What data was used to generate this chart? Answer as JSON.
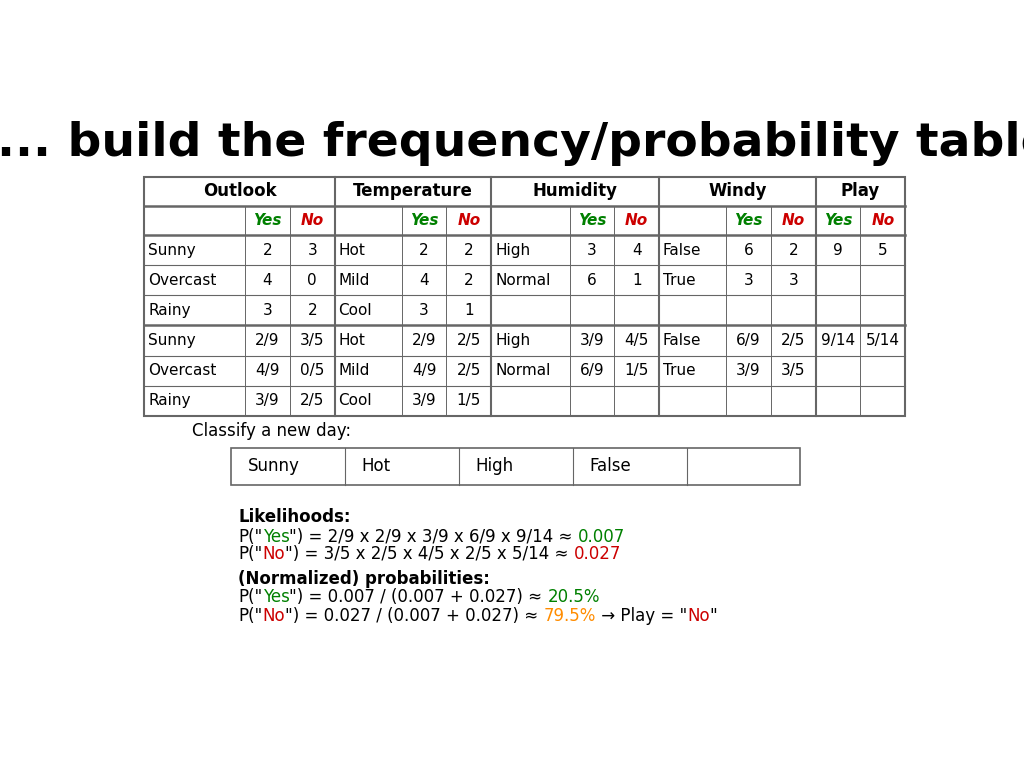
{
  "title": "... build the frequency/probability table",
  "bg_color": "#ffffff",
  "title_fontsize": 34,
  "main_table": {
    "data_rows_freq": [
      [
        "Sunny",
        "2",
        "3",
        "Hot",
        "2",
        "2",
        "High",
        "3",
        "4",
        "False",
        "6",
        "2",
        "9",
        "5"
      ],
      [
        "Overcast",
        "4",
        "0",
        "Mild",
        "4",
        "2",
        "Normal",
        "6",
        "1",
        "True",
        "3",
        "3",
        "",
        ""
      ],
      [
        "Rainy",
        "3",
        "2",
        "Cool",
        "3",
        "1",
        "",
        "",
        "",
        "",
        "",
        "",
        "",
        ""
      ]
    ],
    "data_rows_prob": [
      [
        "Sunny",
        "2/9",
        "3/5",
        "Hot",
        "2/9",
        "2/5",
        "High",
        "3/9",
        "4/5",
        "False",
        "6/9",
        "2/5",
        "9/14",
        "5/14"
      ],
      [
        "Overcast",
        "4/9",
        "0/5",
        "Mild",
        "4/9",
        "2/5",
        "Normal",
        "6/9",
        "1/5",
        "True",
        "3/9",
        "3/5",
        "",
        ""
      ],
      [
        "Rainy",
        "3/9",
        "2/5",
        "Cool",
        "3/9",
        "1/5",
        "",
        "",
        "",
        "",
        "",
        "",
        "",
        ""
      ]
    ]
  },
  "classify_values": [
    "Sunny",
    "Hot",
    "High",
    "False",
    ""
  ],
  "green_color": "#008000",
  "red_color": "#cc0000",
  "orange_color": "#ff8c00",
  "text_color": "#000000",
  "grid_color": "#666666",
  "col_widths_rel": [
    1.8,
    0.8,
    0.8,
    1.2,
    0.8,
    0.8,
    1.4,
    0.8,
    0.8,
    1.2,
    0.8,
    0.8,
    0.8,
    0.8
  ]
}
